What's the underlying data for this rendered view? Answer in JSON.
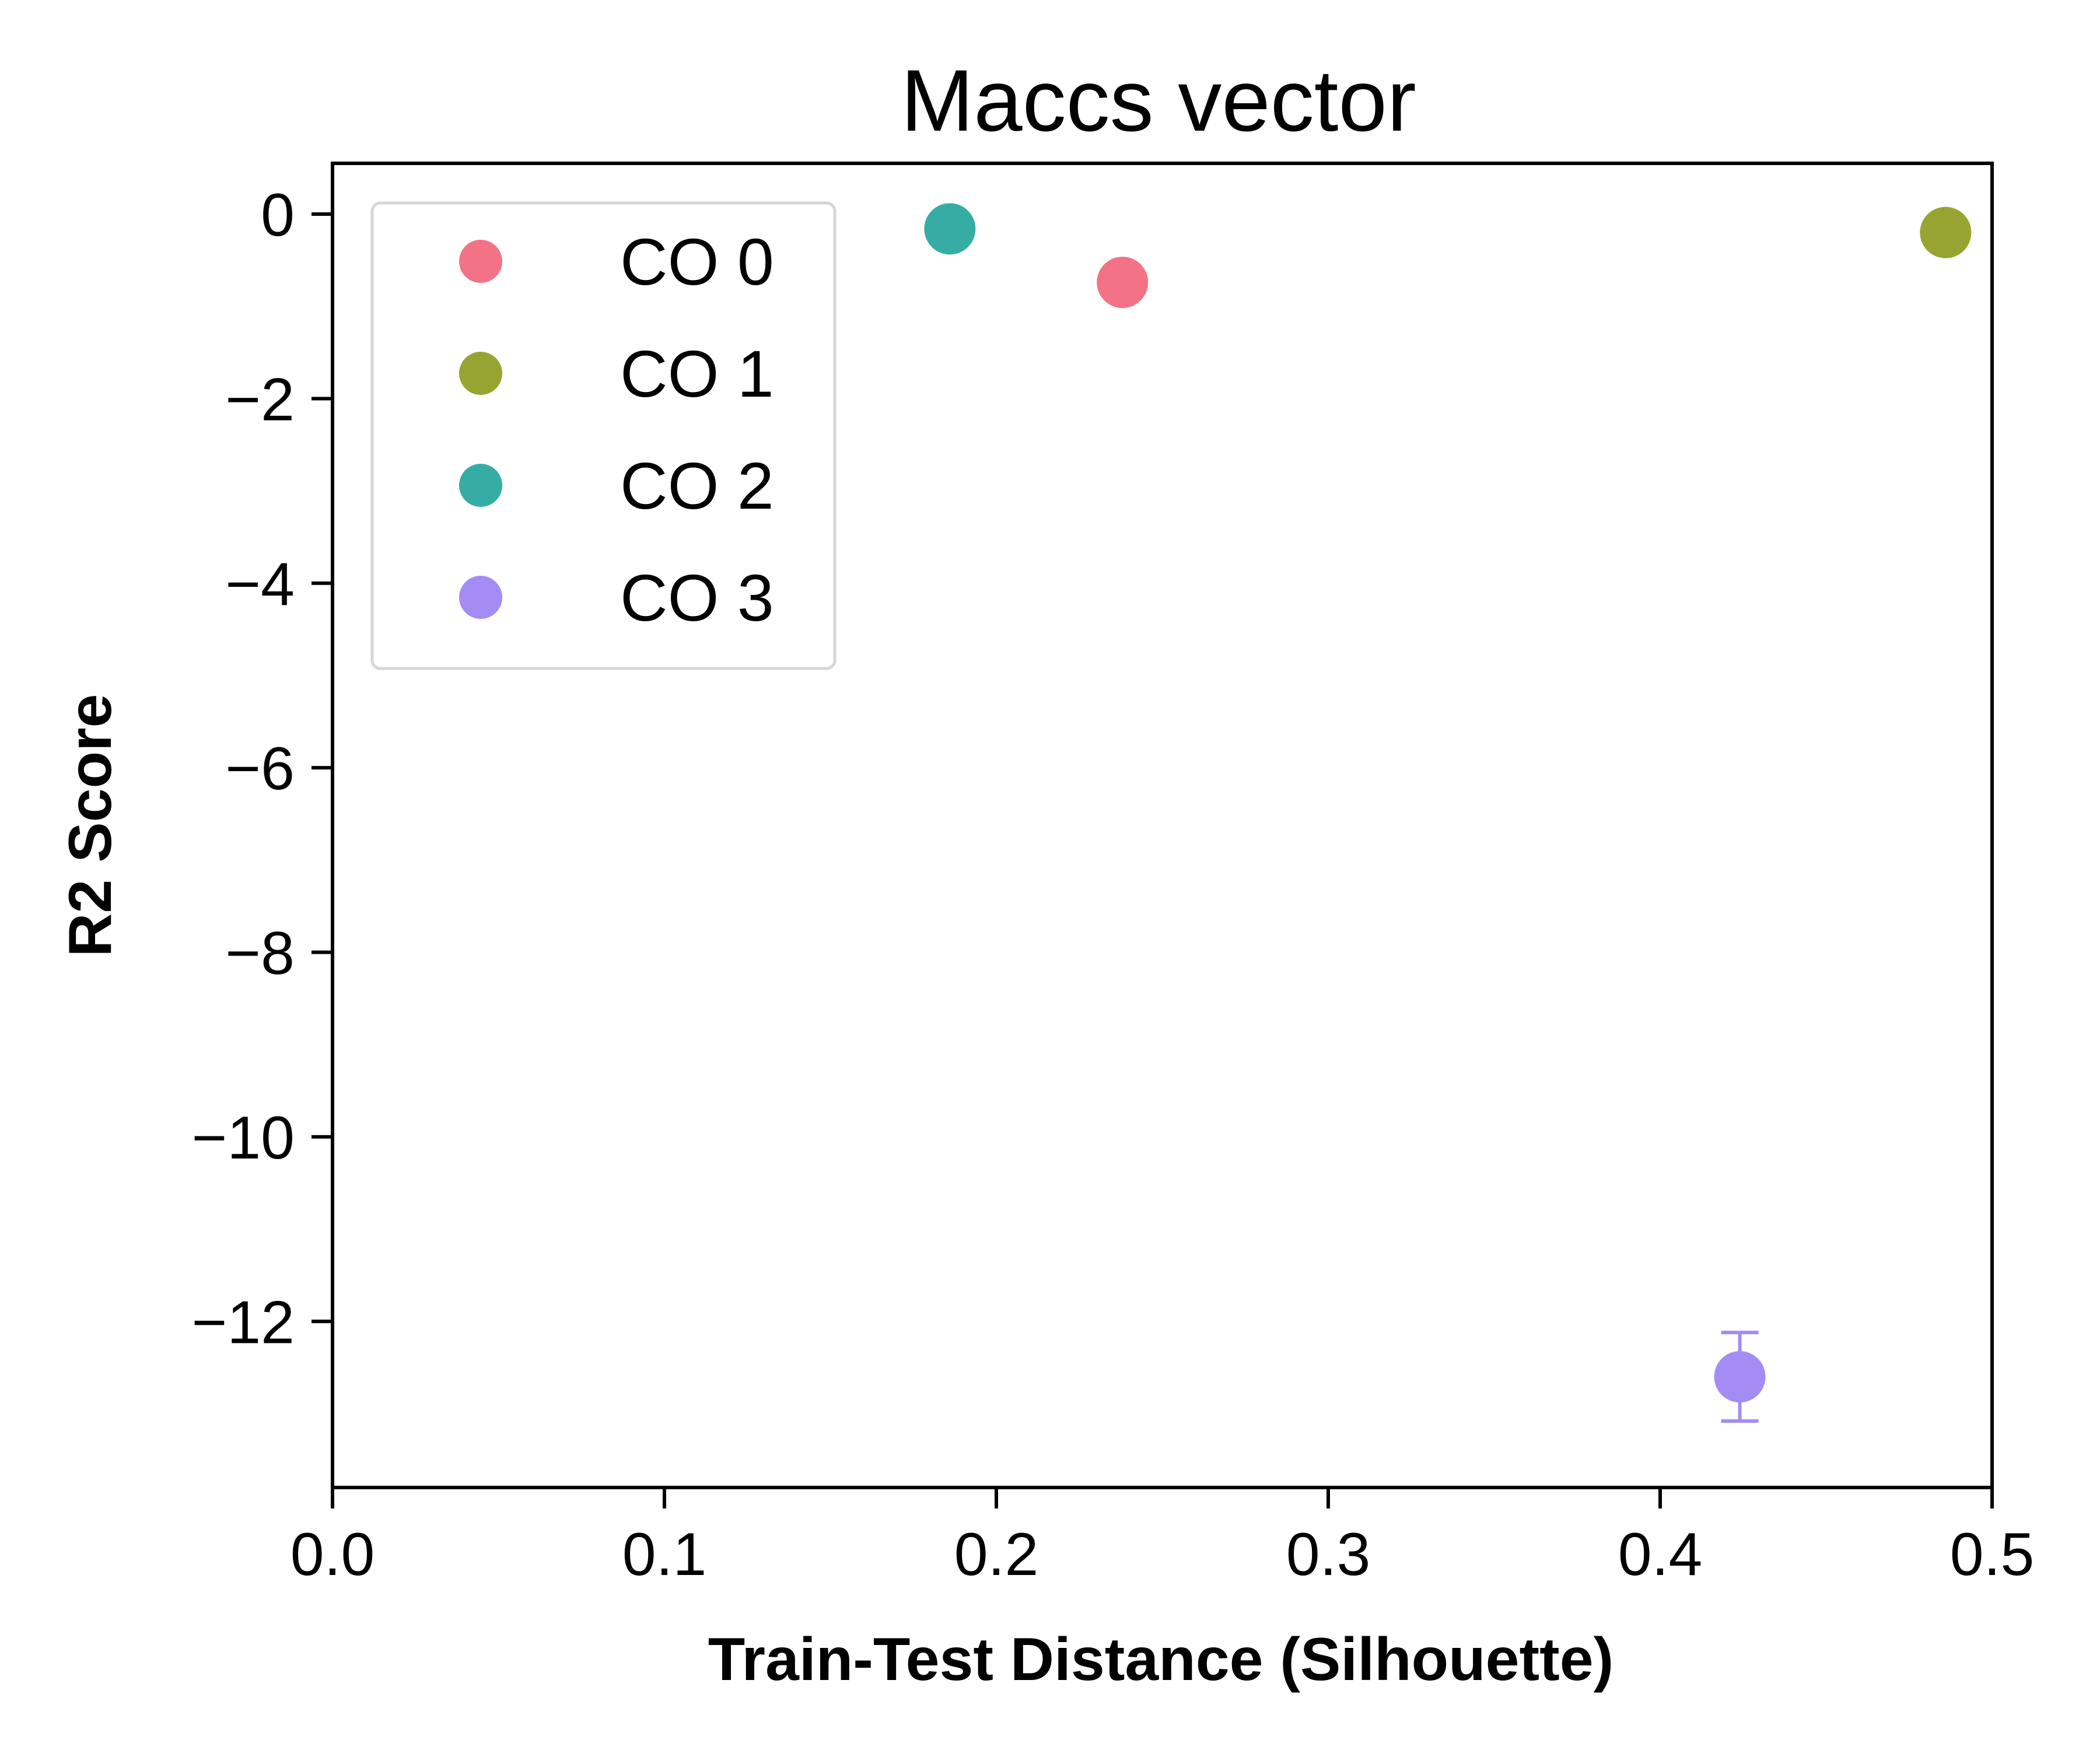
{
  "chart_data": {
    "type": "scatter",
    "title": "Maccs vector",
    "xlabel": "Train-Test Distance (Silhouette)",
    "ylabel": "R2 Score",
    "xlim": [
      0.0,
      0.5
    ],
    "ylim": [
      -13.8,
      0.55
    ],
    "xticks": [
      0.0,
      0.1,
      0.2,
      0.3,
      0.4,
      0.5
    ],
    "xtick_labels": [
      "0.0",
      "0.1",
      "0.2",
      "0.3",
      "0.4",
      "0.5"
    ],
    "yticks": [
      0,
      -2,
      -4,
      -6,
      -8,
      -10,
      -12
    ],
    "ytick_labels": [
      "0",
      "−2",
      "−4",
      "−6",
      "−8",
      "−10",
      "−12"
    ],
    "grid": false,
    "legend_position": "upper-left",
    "series": [
      {
        "name": "CO 0",
        "color": "#f37286",
        "points": [
          {
            "x": 0.238,
            "y": -0.74,
            "err": 0.0
          }
        ]
      },
      {
        "name": "CO 1",
        "color": "#97a431",
        "points": [
          {
            "x": 0.486,
            "y": -0.2,
            "err": 0.0
          }
        ]
      },
      {
        "name": "CO 2",
        "color": "#36ada4",
        "points": [
          {
            "x": 0.186,
            "y": -0.16,
            "err": 0.0
          }
        ]
      },
      {
        "name": "CO 3",
        "color": "#a48cf4",
        "points": [
          {
            "x": 0.424,
            "y": -12.6,
            "err": 0.48
          }
        ]
      }
    ]
  }
}
